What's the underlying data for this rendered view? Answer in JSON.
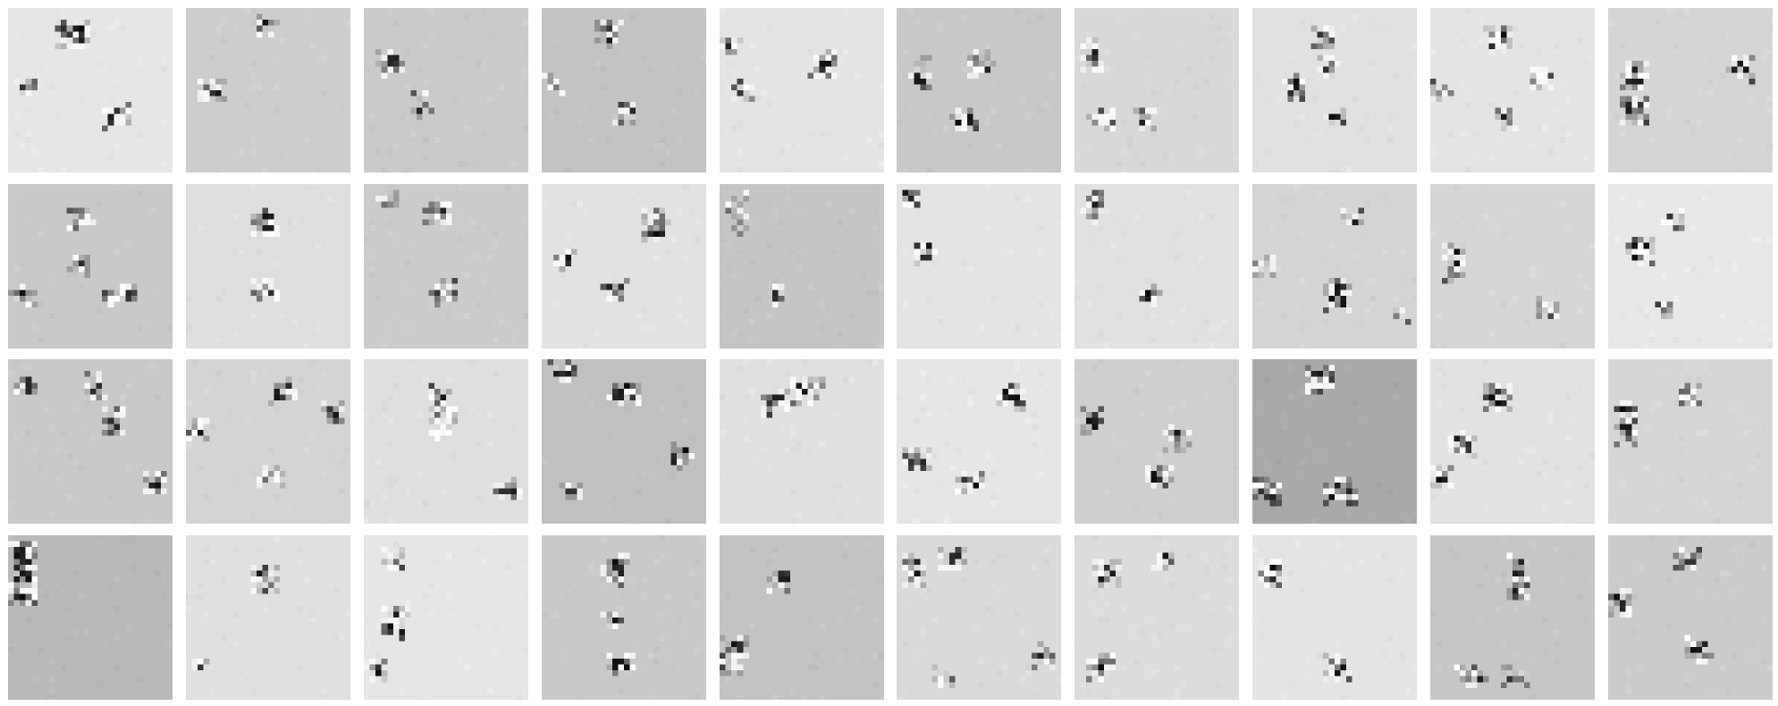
{
  "figure": {
    "rows": 4,
    "cols": 10,
    "pixels_per_side": 28,
    "colormap": "gray",
    "tiles": [
      {
        "bg": "#e6e6e6",
        "clusters": [
          [
            9,
            3,
            4,
            3
          ],
          [
            2,
            13,
            2,
            2
          ],
          [
            17,
            17,
            3,
            3
          ]
        ]
      },
      {
        "bg": "#cdcdcd",
        "clusters": [
          [
            13,
            2,
            2,
            2
          ],
          [
            3,
            13,
            3,
            2
          ]
        ]
      },
      {
        "bg": "#cacaca",
        "clusters": [
          [
            3,
            8,
            3,
            3
          ],
          [
            9,
            15,
            2,
            3
          ]
        ]
      },
      {
        "bg": "#c3c3c3",
        "clusters": [
          [
            10,
            3,
            3,
            3
          ],
          [
            1,
            12,
            2,
            2
          ],
          [
            13,
            17,
            3,
            2
          ]
        ]
      },
      {
        "bg": "#e4e4e4",
        "clusters": [
          [
            16,
            8,
            3,
            3
          ],
          [
            1,
            6,
            2,
            2
          ],
          [
            3,
            13,
            2,
            2
          ]
        ]
      },
      {
        "bg": "#c8c8c8",
        "clusters": [
          [
            13,
            8,
            3,
            3
          ],
          [
            3,
            9,
            2,
            4
          ],
          [
            10,
            18,
            3,
            2
          ]
        ]
      },
      {
        "bg": "#d8d8d8",
        "clusters": [
          [
            2,
            6,
            2,
            4
          ],
          [
            3,
            18,
            3,
            2
          ],
          [
            11,
            18,
            2,
            2
          ]
        ]
      },
      {
        "bg": "#e1e1e1",
        "clusters": [
          [
            11,
            4,
            2,
            2
          ],
          [
            12,
            9,
            2,
            3
          ],
          [
            6,
            12,
            3,
            3
          ],
          [
            13,
            18,
            2,
            2
          ]
        ]
      },
      {
        "bg": "#e4e4e4",
        "clusters": [
          [
            10,
            4,
            3,
            3
          ],
          [
            18,
            11,
            2,
            2
          ],
          [
            1,
            13,
            2,
            2
          ],
          [
            12,
            18,
            2,
            2
          ]
        ]
      },
      {
        "bg": "#d5d5d5",
        "clusters": [
          [
            3,
            10,
            3,
            3
          ],
          [
            21,
            9,
            3,
            3
          ],
          [
            3,
            16,
            3,
            3
          ]
        ]
      },
      {
        "bg": "#c9c9c9",
        "clusters": [
          [
            11,
            4,
            3,
            3
          ],
          [
            11,
            13,
            2,
            2
          ],
          [
            1,
            18,
            3,
            2
          ],
          [
            17,
            18,
            4,
            2
          ]
        ]
      },
      {
        "bg": "#dedede",
        "clusters": [
          [
            12,
            5,
            3,
            3
          ],
          [
            12,
            17,
            3,
            2
          ]
        ]
      },
      {
        "bg": "#cbcbcb",
        "clusters": [
          [
            3,
            2,
            2,
            2
          ],
          [
            11,
            4,
            3,
            2
          ],
          [
            12,
            17,
            3,
            3
          ]
        ]
      },
      {
        "bg": "#e2e2e2",
        "clusters": [
          [
            18,
            5,
            3,
            4
          ],
          [
            2,
            12,
            3,
            2
          ],
          [
            11,
            17,
            3,
            2
          ]
        ]
      },
      {
        "bg": "#c5c5c5",
        "clusters": [
          [
            2,
            2,
            2,
            6
          ],
          [
            9,
            18,
            2,
            2
          ]
        ]
      },
      {
        "bg": "#e4e4e4",
        "clusters": [
          [
            1,
            1,
            2,
            2
          ],
          [
            3,
            10,
            3,
            3
          ]
        ]
      },
      {
        "bg": "#e1e1e1",
        "clusters": [
          [
            2,
            2,
            2,
            4
          ],
          [
            12,
            18,
            3,
            2
          ]
        ]
      },
      {
        "bg": "#d4d4d4",
        "clusters": [
          [
            16,
            5,
            2,
            2
          ],
          [
            1,
            13,
            2,
            2
          ],
          [
            13,
            17,
            3,
            4
          ],
          [
            24,
            21,
            2,
            2
          ]
        ]
      },
      {
        "bg": "#d6d6d6",
        "clusters": [
          [
            3,
            11,
            2,
            5
          ],
          [
            18,
            20,
            3,
            2
          ]
        ]
      },
      {
        "bg": "#e8e8e8",
        "clusters": [
          [
            10,
            5,
            2,
            2
          ],
          [
            4,
            10,
            3,
            3
          ],
          [
            9,
            20,
            2,
            2
          ]
        ]
      },
      {
        "bg": "#c9c9c9",
        "clusters": [
          [
            2,
            3,
            2,
            3
          ],
          [
            14,
            3,
            2,
            3
          ],
          [
            17,
            9,
            2,
            3
          ],
          [
            24,
            20,
            2,
            2
          ]
        ]
      },
      {
        "bg": "#d4d4d4",
        "clusters": [
          [
            15,
            4,
            3,
            3
          ],
          [
            1,
            11,
            2,
            2
          ],
          [
            24,
            8,
            2,
            2
          ],
          [
            13,
            19,
            3,
            2
          ]
        ]
      },
      {
        "bg": "#dfdfdf",
        "clusters": [
          [
            12,
            5,
            2,
            2
          ],
          [
            12,
            9,
            3,
            4
          ],
          [
            23,
            21,
            3,
            2
          ]
        ]
      },
      {
        "bg": "#c0c0c0",
        "clusters": [
          [
            2,
            1,
            3,
            2
          ],
          [
            12,
            4,
            4,
            3
          ],
          [
            22,
            15,
            3,
            3
          ],
          [
            4,
            21,
            2,
            2
          ]
        ]
      },
      {
        "bg": "#e0e0e0",
        "clusters": [
          [
            13,
            4,
            4,
            3
          ],
          [
            8,
            6,
            3,
            3
          ]
        ]
      },
      {
        "bg": "#e6e6e6",
        "clusters": [
          [
            18,
            5,
            3,
            3
          ],
          [
            2,
            16,
            3,
            2
          ],
          [
            11,
            20,
            3,
            2
          ]
        ]
      },
      {
        "bg": "#cfcfcf",
        "clusters": [
          [
            2,
            9,
            2,
            3
          ],
          [
            16,
            12,
            3,
            3
          ],
          [
            13,
            19,
            3,
            2
          ]
        ]
      },
      {
        "bg": "#a9a9a9",
        "clusters": [
          [
            10,
            2,
            3,
            3
          ],
          [
            1,
            21,
            3,
            3
          ],
          [
            13,
            21,
            4,
            3
          ]
        ]
      },
      {
        "bg": "#e2e2e2",
        "clusters": [
          [
            10,
            5,
            3,
            3
          ],
          [
            4,
            13,
            3,
            3
          ],
          [
            1,
            19,
            2,
            2
          ]
        ]
      },
      {
        "bg": "#d6d6d6",
        "clusters": [
          [
            2,
            8,
            2,
            6
          ],
          [
            13,
            5,
            2,
            2
          ]
        ]
      },
      {
        "bg": "#b9b9b9",
        "clusters": [
          [
            1,
            1,
            3,
            10
          ]
        ]
      },
      {
        "bg": "#e0e0e0",
        "clusters": [
          [
            12,
            6,
            3,
            3
          ],
          [
            1,
            21,
            2,
            2
          ]
        ]
      },
      {
        "bg": "#e6e6e6",
        "clusters": [
          [
            4,
            3,
            2,
            2
          ],
          [
            4,
            13,
            3,
            4
          ],
          [
            1,
            22,
            2,
            2
          ]
        ]
      },
      {
        "bg": "#c9c9c9",
        "clusters": [
          [
            11,
            4,
            3,
            4
          ],
          [
            11,
            14,
            2,
            2
          ],
          [
            12,
            21,
            3,
            2
          ]
        ]
      },
      {
        "bg": "#c3c3c3",
        "clusters": [
          [
            9,
            6,
            3,
            3
          ],
          [
            1,
            18,
            3,
            5
          ]
        ]
      },
      {
        "bg": "#dadada",
        "clusters": [
          [
            2,
            4,
            2,
            4
          ],
          [
            8,
            3,
            3,
            2
          ],
          [
            7,
            23,
            2,
            2
          ],
          [
            24,
            19,
            2,
            3
          ]
        ]
      },
      {
        "bg": "#dcdcdc",
        "clusters": [
          [
            4,
            5,
            3,
            3
          ],
          [
            14,
            3,
            2,
            2
          ],
          [
            3,
            21,
            3,
            3
          ]
        ]
      },
      {
        "bg": "#e4e4e4",
        "clusters": [
          [
            1,
            5,
            3,
            3
          ],
          [
            13,
            21,
            3,
            3
          ]
        ]
      },
      {
        "bg": "#c6c6c6",
        "clusters": [
          [
            14,
            4,
            2,
            6
          ],
          [
            5,
            23,
            4,
            2
          ],
          [
            13,
            23,
            3,
            2
          ]
        ]
      },
      {
        "bg": "#cbcbcb",
        "clusters": [
          [
            12,
            3,
            3,
            3
          ],
          [
            1,
            10,
            2,
            3
          ],
          [
            14,
            18,
            3,
            3
          ]
        ]
      }
    ]
  }
}
